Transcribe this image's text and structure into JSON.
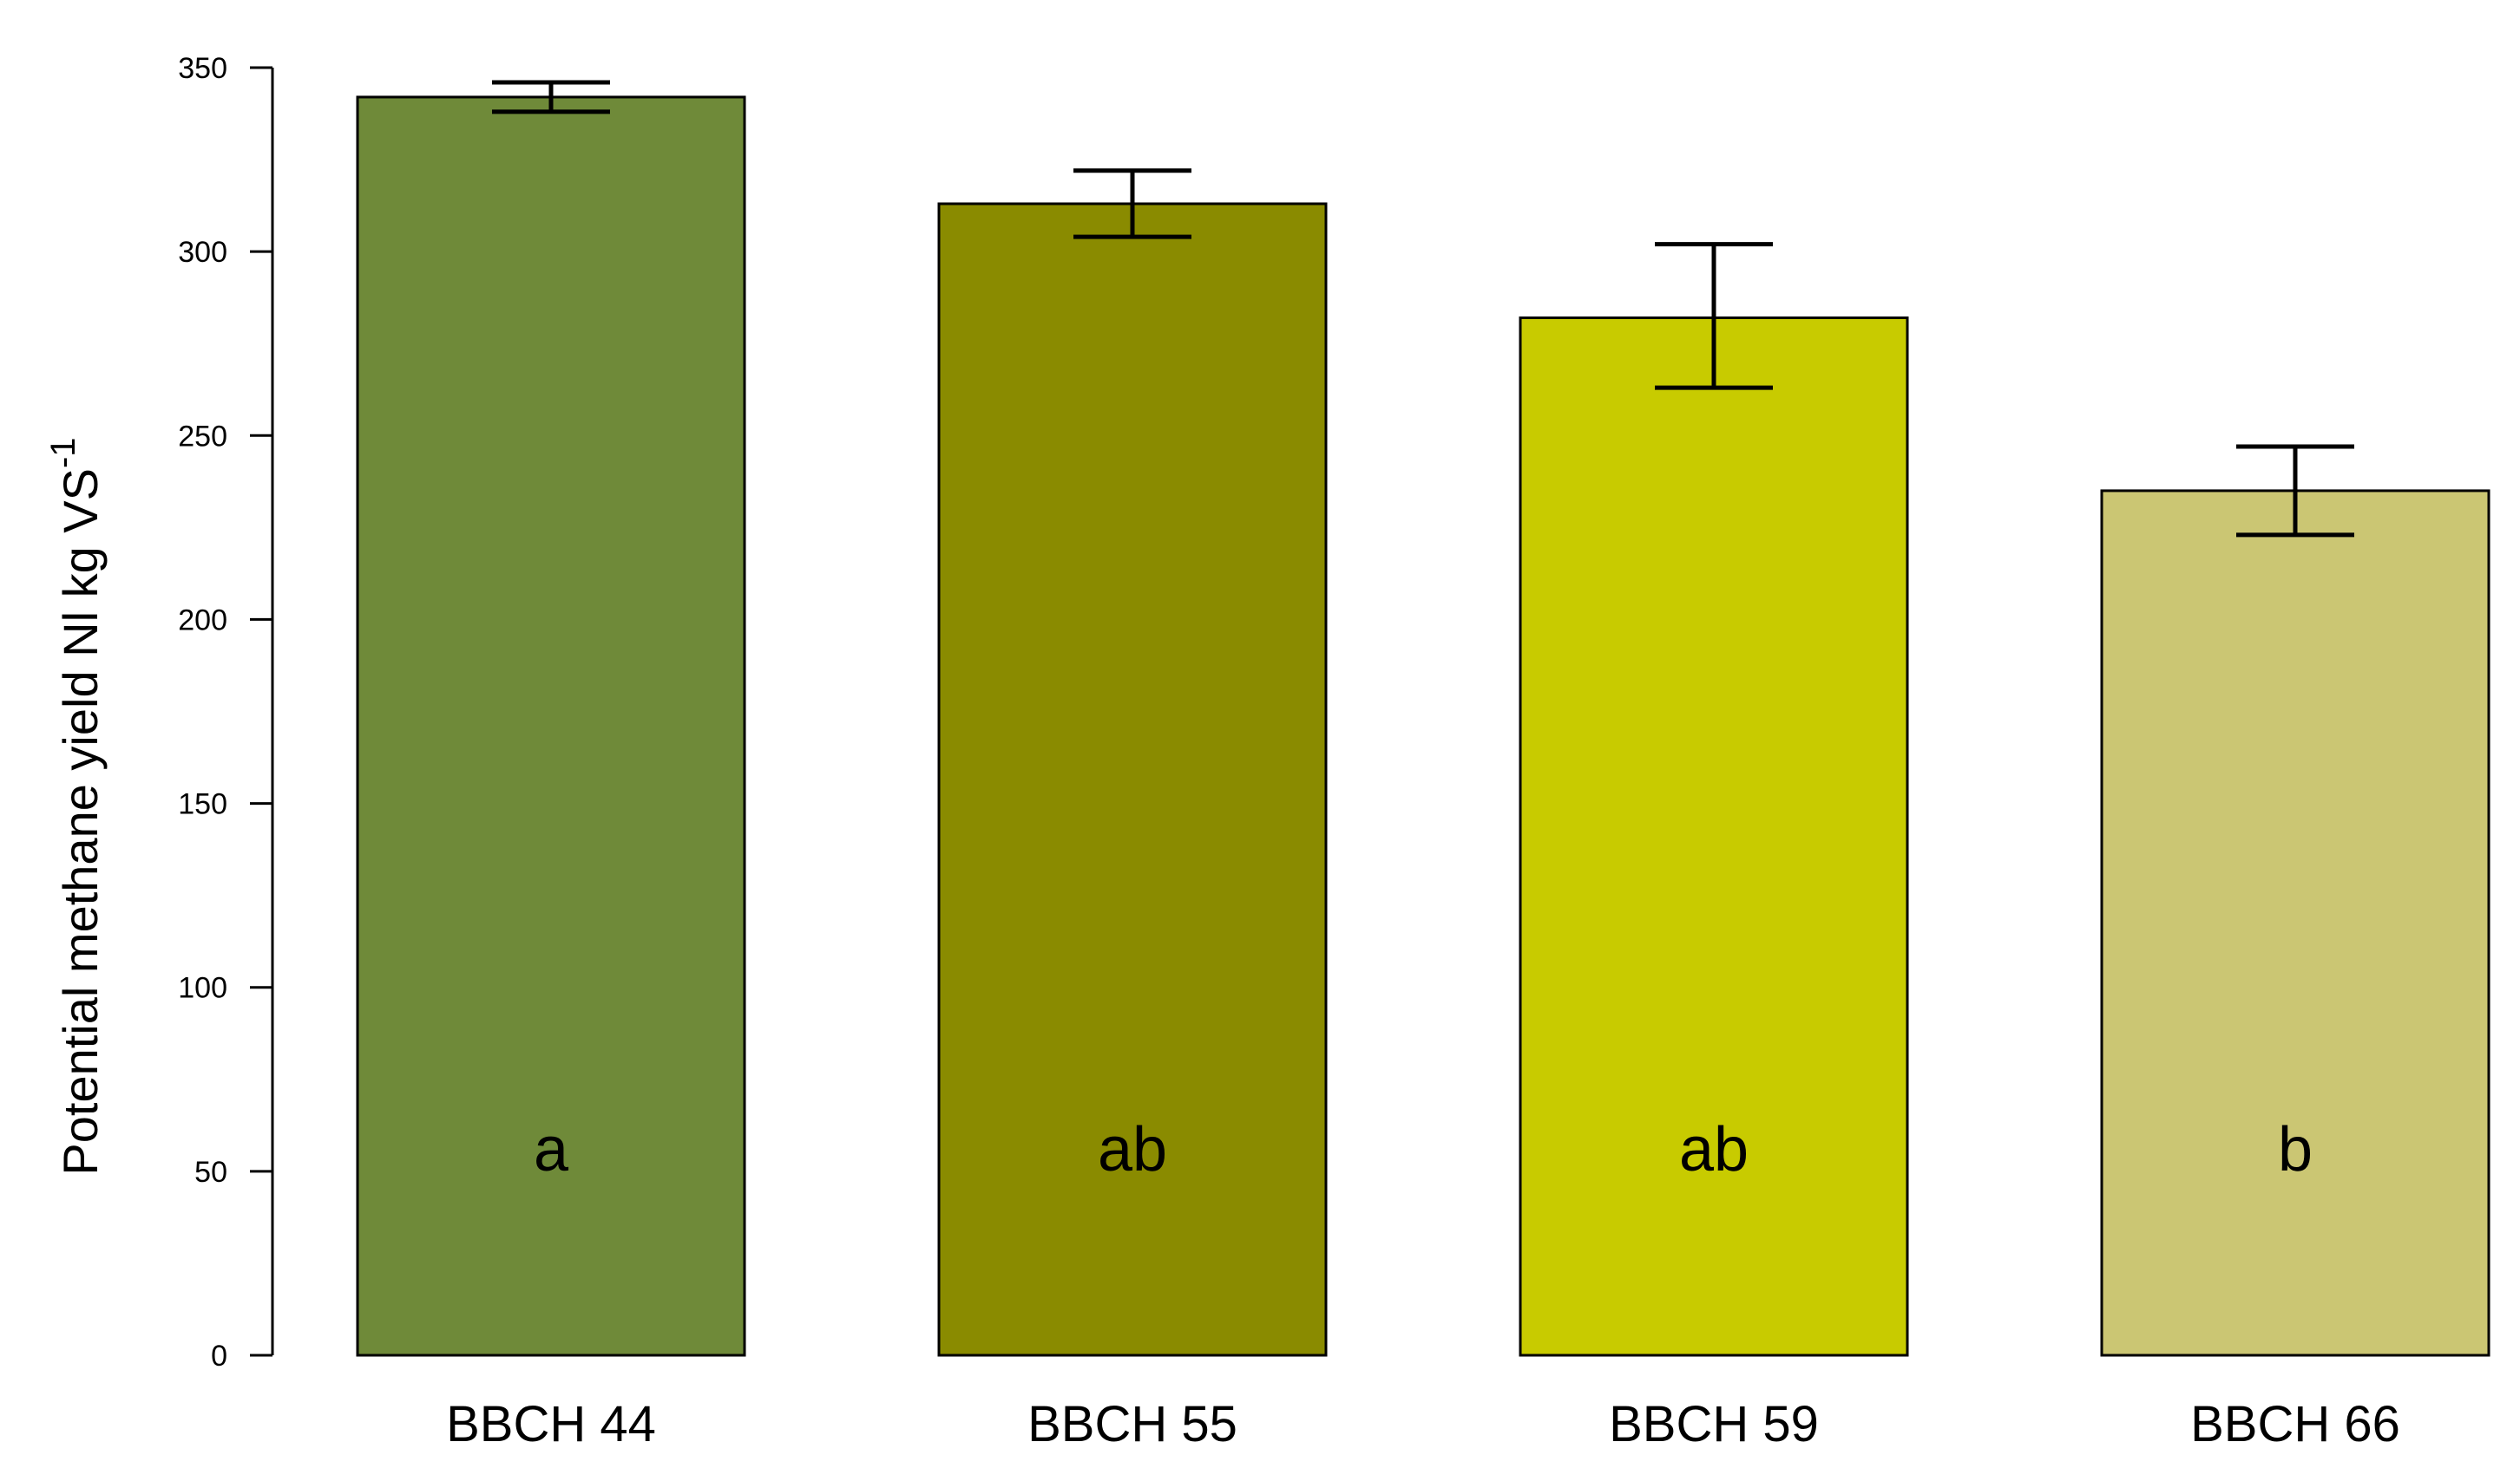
{
  "chart_data": {
    "type": "bar",
    "title": "",
    "xlabel": "",
    "ylabel": "Potential methane yield  Nl   kg VS",
    "ylabel_superscript": "-1",
    "ylim": [
      0,
      350
    ],
    "yticks": [
      "0",
      "50",
      "100",
      "150",
      "200",
      "250",
      "300",
      "350"
    ],
    "grid": false,
    "legend": "none",
    "categories": [
      "BBCH 44",
      "BBCH 55",
      "BBCH 59",
      "BBCH 66"
    ],
    "values": [
      342,
      313,
      282,
      235
    ],
    "error_low": [
      338,
      304,
      263,
      223
    ],
    "error_high": [
      346,
      322,
      302,
      247
    ],
    "significance_letters": [
      "a",
      "ab",
      "ab",
      "b"
    ],
    "colors": [
      "#6f8a39",
      "#8a8b00",
      "#c8cb00",
      "#cbc673"
    ]
  }
}
